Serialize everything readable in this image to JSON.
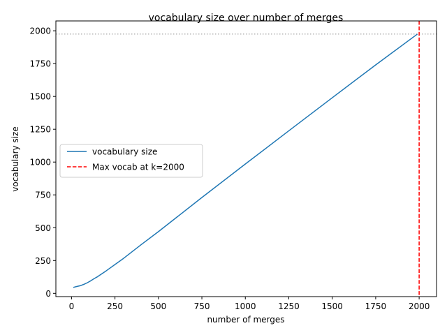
{
  "chart_data": {
    "type": "line",
    "title": "vocabulary size over number of merges",
    "xlabel": "number of merges",
    "ylabel": "vocabulary size",
    "xlim": [
      -90,
      2100
    ],
    "ylim": [
      -25,
      2075
    ],
    "xticks": [
      0,
      250,
      500,
      750,
      1000,
      1250,
      1500,
      1750,
      2000
    ],
    "yticks": [
      0,
      250,
      500,
      750,
      1000,
      1250,
      1500,
      1750,
      2000
    ],
    "grid": false,
    "legend_position": "center-left",
    "series": [
      {
        "name": "vocabulary size",
        "color": "#1f77b4",
        "style": "solid",
        "x": [
          10,
          30,
          50,
          70,
          90,
          110,
          130,
          150,
          200,
          300,
          400,
          500,
          750,
          1000,
          1250,
          1500,
          1750,
          1990
        ],
        "y": [
          45,
          52,
          58,
          68,
          80,
          95,
          112,
          127,
          172,
          267,
          370,
          470,
          730,
          985,
          1238,
          1490,
          1740,
          1975
        ]
      }
    ],
    "annotations": [
      {
        "type": "vline",
        "label": "Max vocab at k=2000",
        "x": 2000,
        "color": "#ff0000",
        "style": "dashed"
      },
      {
        "type": "hline",
        "y": 1975,
        "color": "#999999",
        "style": "dotted"
      }
    ]
  }
}
